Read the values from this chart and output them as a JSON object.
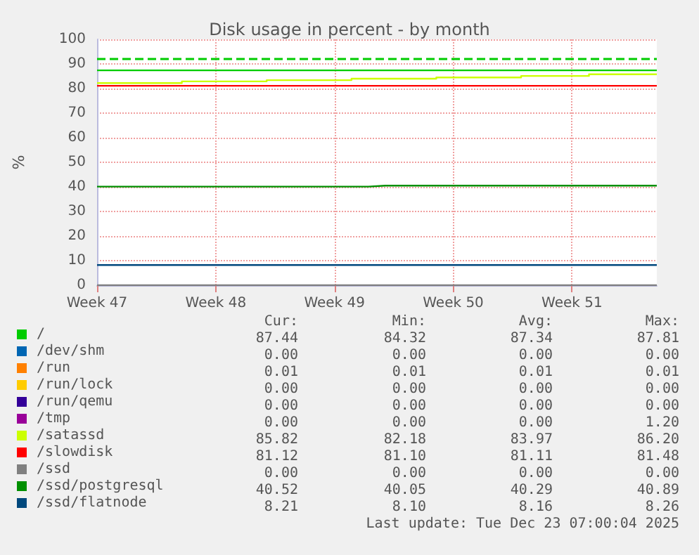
{
  "chart_data": {
    "type": "line",
    "title": "Disk usage in percent - by month",
    "ylabel": "%",
    "categories": [
      "Week 47",
      null,
      null,
      null,
      null,
      null,
      null,
      "Week 48",
      null,
      null,
      null,
      null,
      null,
      null,
      "Week 49",
      null,
      null,
      null,
      null,
      null,
      null,
      "Week 50",
      null,
      null,
      null,
      null,
      null,
      null,
      "Week 51",
      null,
      null,
      null,
      null,
      null
    ],
    "ylim": [
      0,
      100
    ],
    "yticks": [
      0,
      10,
      20,
      30,
      40,
      50,
      60,
      70,
      80,
      90,
      100
    ],
    "grid": true,
    "legend": "bottom",
    "marker": "none",
    "ref_lines": [
      {
        "axis": "y",
        "value": 92,
        "label": null,
        "color": "#00cc00",
        "line_style": "dashed"
      }
    ],
    "series": [
      {
        "name": "/",
        "color": "#00cc00",
        "values": [
          87.4,
          87.4,
          87.4,
          87.4,
          87.4,
          87.4,
          87.4,
          87.4,
          87.4,
          87.4,
          87.4,
          87.4,
          87.4,
          87.4,
          87.4,
          87.4,
          87.4,
          87.4,
          87.4,
          87.4,
          87.4,
          87.4,
          87.4,
          87.4,
          87.4,
          87.4,
          87.4,
          87.4,
          87.4,
          87.4,
          87.4,
          87.4,
          87.4,
          87.4
        ]
      },
      {
        "name": "/dev/shm",
        "color": "#0066b3",
        "values": [
          null,
          null,
          null,
          null,
          null,
          null,
          null,
          null,
          null,
          null,
          null,
          null,
          null,
          null,
          null,
          null,
          null,
          null,
          null,
          null,
          null,
          null,
          null,
          null,
          null,
          null,
          null,
          null,
          null,
          null,
          null,
          null,
          null,
          null
        ]
      },
      {
        "name": "/run",
        "color": "#ff8000",
        "values": [
          null,
          null,
          null,
          null,
          null,
          null,
          null,
          null,
          null,
          null,
          null,
          null,
          null,
          null,
          null,
          null,
          null,
          null,
          null,
          null,
          null,
          null,
          null,
          null,
          null,
          null,
          null,
          null,
          null,
          null,
          null,
          null,
          null,
          null
        ]
      },
      {
        "name": "/run/lock",
        "color": "#ffcc00",
        "values": [
          null,
          null,
          null,
          null,
          null,
          null,
          null,
          null,
          null,
          null,
          null,
          null,
          null,
          null,
          null,
          null,
          null,
          null,
          null,
          null,
          null,
          null,
          null,
          null,
          null,
          null,
          null,
          null,
          null,
          null,
          null,
          null,
          null,
          null
        ]
      },
      {
        "name": "/run/qemu",
        "color": "#330099",
        "values": [
          null,
          null,
          null,
          null,
          null,
          null,
          null,
          null,
          null,
          null,
          null,
          null,
          null,
          null,
          null,
          null,
          null,
          null,
          null,
          null,
          null,
          null,
          null,
          null,
          null,
          null,
          null,
          null,
          null,
          null,
          null,
          null,
          null,
          null
        ]
      },
      {
        "name": "/tmp",
        "color": "#990099",
        "values": [
          null,
          null,
          null,
          null,
          null,
          null,
          null,
          null,
          null,
          null,
          null,
          null,
          null,
          null,
          null,
          null,
          null,
          null,
          null,
          null,
          null,
          null,
          null,
          null,
          null,
          null,
          null,
          null,
          null,
          null,
          null,
          null,
          null,
          null
        ]
      },
      {
        "name": "/satassd",
        "color": "#ccff00",
        "type": "step",
        "values": [
          82.2,
          82.2,
          82.2,
          82.2,
          82.2,
          82.9,
          82.9,
          82.9,
          82.9,
          82.9,
          83.4,
          83.4,
          83.4,
          83.4,
          83.4,
          84.0,
          84.0,
          84.0,
          84.0,
          84.0,
          84.5,
          84.5,
          84.5,
          84.5,
          84.5,
          85.1,
          85.1,
          85.1,
          85.1,
          85.8,
          85.8,
          85.8,
          85.8,
          85.8
        ]
      },
      {
        "name": "/slowdisk",
        "color": "#ff0000",
        "values": [
          81.1,
          81.1,
          81.1,
          81.1,
          81.1,
          81.1,
          81.1,
          81.1,
          81.1,
          81.1,
          81.1,
          81.1,
          81.1,
          81.1,
          81.1,
          81.1,
          81.1,
          81.1,
          81.1,
          81.1,
          81.1,
          81.1,
          81.1,
          81.1,
          81.1,
          81.1,
          81.1,
          81.1,
          81.1,
          81.1,
          81.1,
          81.1,
          81.1,
          81.1
        ]
      },
      {
        "name": "/ssd",
        "color": "#808080",
        "values": [
          0,
          0,
          0,
          0,
          0,
          0,
          0,
          0,
          0,
          0,
          0,
          0,
          0,
          0,
          0,
          0,
          0,
          0,
          0,
          0,
          0,
          0,
          0,
          0,
          0,
          0,
          0,
          0,
          0,
          0,
          0,
          0,
          0,
          0
        ]
      },
      {
        "name": "/ssd/postgresql",
        "color": "#008f00",
        "type": "step",
        "values": [
          40.1,
          40.1,
          40.1,
          40.1,
          40.1,
          40.1,
          40.1,
          40.1,
          40.1,
          40.1,
          40.1,
          40.1,
          40.1,
          40.1,
          40.1,
          40.1,
          40.5,
          40.5,
          40.5,
          40.5,
          40.5,
          40.5,
          40.5,
          40.5,
          40.5,
          40.5,
          40.5,
          40.5,
          40.5,
          40.5,
          40.5,
          40.5,
          40.5,
          40.5
        ]
      },
      {
        "name": "/ssd/flatnode",
        "color": "#00487d",
        "values": [
          8.2,
          8.2,
          8.2,
          8.2,
          8.2,
          8.2,
          8.2,
          8.2,
          8.2,
          8.2,
          8.2,
          8.2,
          8.2,
          8.2,
          8.2,
          8.2,
          8.2,
          8.2,
          8.2,
          8.2,
          8.2,
          8.2,
          8.2,
          8.2,
          8.2,
          8.2,
          8.2,
          8.2,
          8.2,
          8.2,
          8.2,
          8.2,
          8.2,
          8.2
        ]
      }
    ],
    "annotations": [
      "Cur:",
      "Min:",
      "Avg:",
      "Max:",
      "87.44",
      "84.32",
      "87.34",
      "87.81",
      "0.00",
      "0.00",
      "0.00",
      "0.00",
      "0.01",
      "0.01",
      "0.01",
      "0.01",
      "0.00",
      "0.00",
      "0.00",
      "0.00",
      "0.00",
      "0.00",
      "0.00",
      "0.00",
      "0.00",
      "0.00",
      "0.00",
      "1.20",
      "85.82",
      "82.18",
      "83.97",
      "86.20",
      "81.12",
      "81.10",
      "81.11",
      "81.48",
      "0.00",
      "0.00",
      "0.00",
      "0.00",
      "40.52",
      "40.05",
      "40.29",
      "40.89",
      "8.21",
      "8.10",
      "8.16",
      "8.26",
      "Last update: Tue Dec 23 07:00:04 2025"
    ]
  }
}
